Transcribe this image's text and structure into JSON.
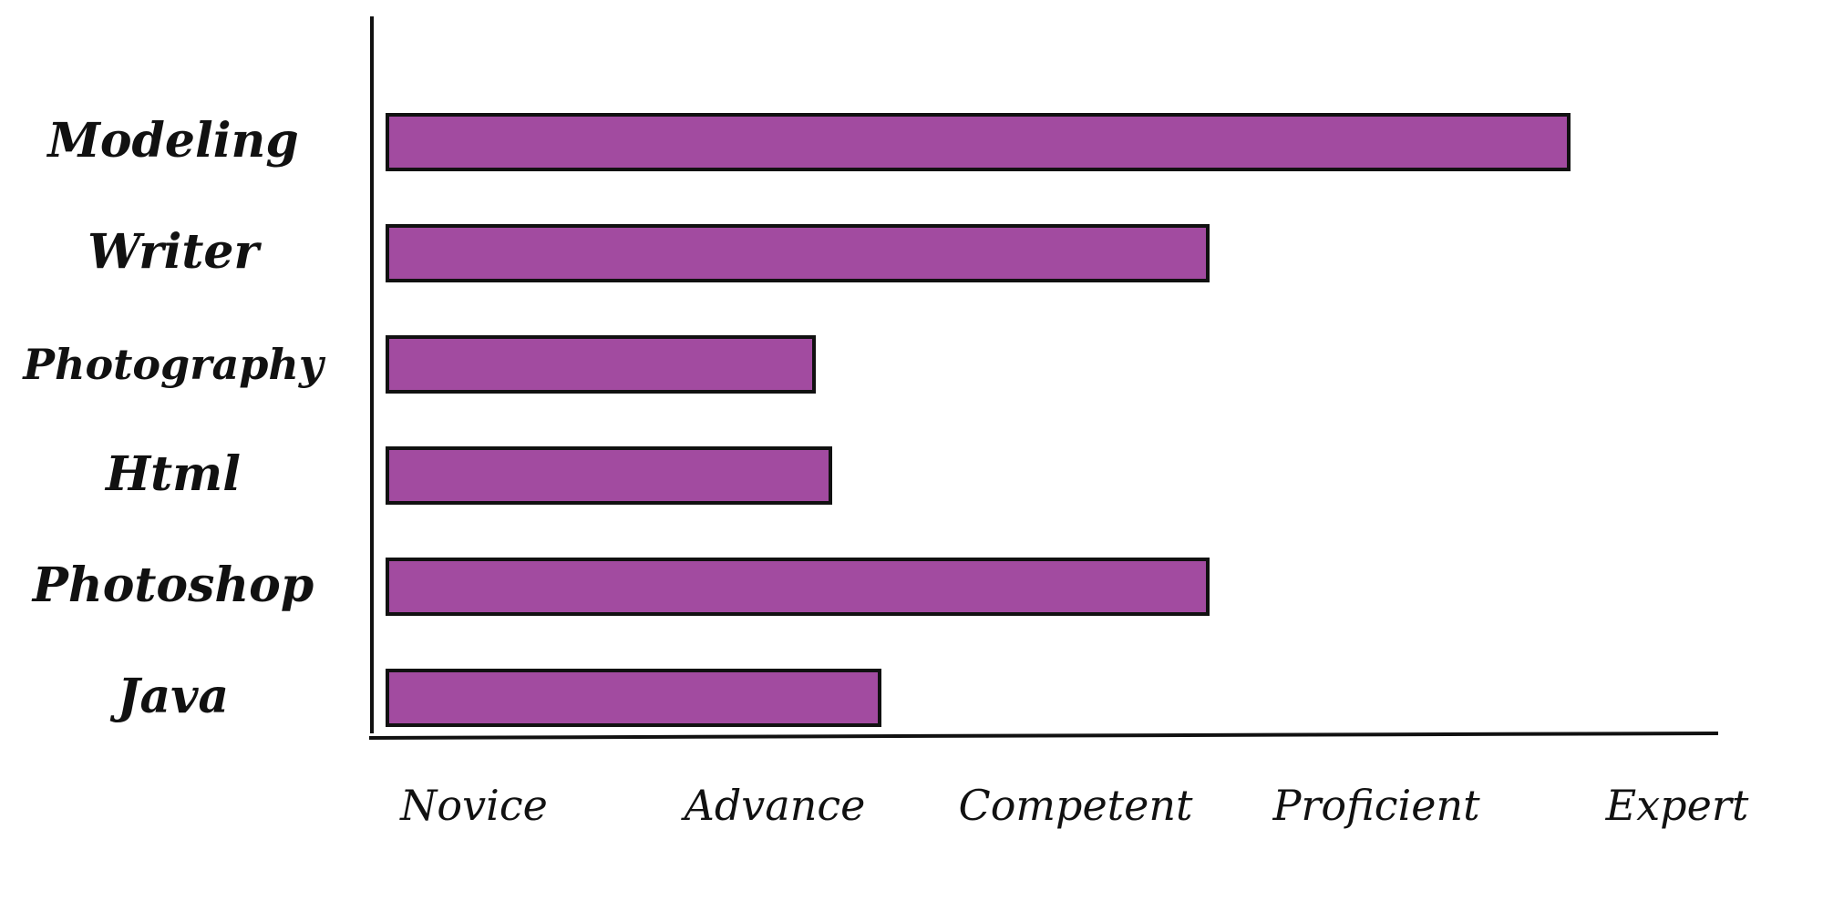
{
  "chart_data": {
    "type": "bar",
    "orientation": "horizontal",
    "categories": [
      "Modeling",
      "Writer",
      "Photography",
      "Html",
      "Photoshop",
      "Java"
    ],
    "values": [
      3.6,
      2.5,
      1.3,
      1.35,
      2.5,
      1.5
    ],
    "x_tick_labels": [
      "Novice",
      "Advance",
      "Competent",
      "Proficient",
      "Expert"
    ],
    "xlim": [
      0,
      4.5
    ],
    "title": "",
    "xlabel": "",
    "ylabel": "",
    "grid": false,
    "legend": "none",
    "colors": {
      "bar_fill": "#a24ba0",
      "bar_stroke": "#111111",
      "axis": "#111111"
    }
  }
}
